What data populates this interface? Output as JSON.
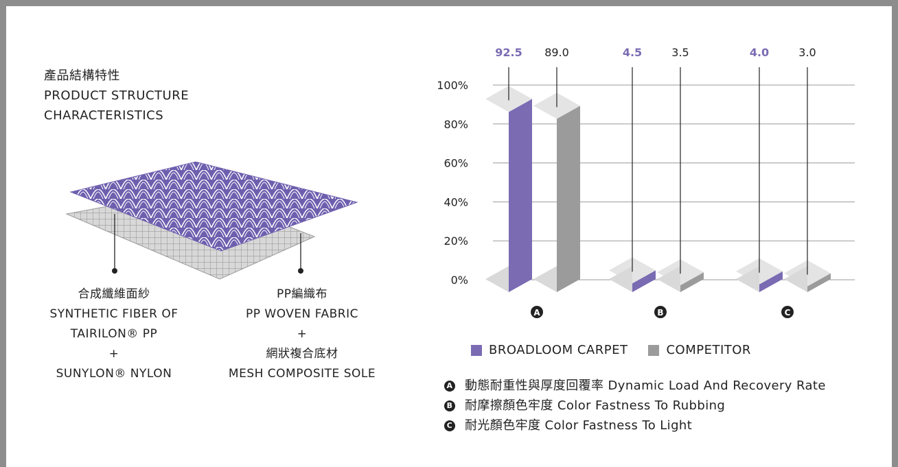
{
  "heading": {
    "zh": "產品結構特性",
    "en_line1": "PRODUCT STRUCTURE",
    "en_line2": "CHARACTERISTICS"
  },
  "layers": {
    "top": {
      "zh": "合成纖維面紗",
      "en_line1": "SYNTHETIC FIBER OF",
      "en_line2": "TAIRILON® PP",
      "plus": "+",
      "en_line3": "SUNYLON® NYLON"
    },
    "bottom": {
      "zh": "PP編織布",
      "en_line1": "PP WOVEN FABRIC",
      "plus": "+",
      "zh2": "網狀複合底材",
      "en_line2": "MESH COMPOSITE SOLE"
    }
  },
  "colors": {
    "primary": "#7a6bb3",
    "competitor": "#9b9b9b",
    "frame": "#8d8d8d"
  },
  "chart_data": {
    "type": "bar",
    "categories": [
      "A",
      "B",
      "C"
    ],
    "category_badges": [
      "A",
      "B",
      "C"
    ],
    "series": [
      {
        "name": "BROADLOOM CARPET",
        "values": [
          92.5,
          4.5,
          4.0
        ],
        "labels": [
          "92.5",
          "4.5",
          "4.0"
        ]
      },
      {
        "name": "COMPETITOR",
        "values": [
          89.0,
          3.5,
          3.0
        ],
        "labels": [
          "89.0",
          "3.5",
          "3.0"
        ]
      }
    ],
    "y_ticks": [
      "0%",
      "20%",
      "40%",
      "60%",
      "80%",
      "100%"
    ],
    "ylim": [
      0,
      100
    ],
    "grid": true,
    "legend_position": "bottom"
  },
  "notes": [
    {
      "badge": "A",
      "text": "動態耐重性與厚度回覆率 Dynamic Load And Recovery Rate"
    },
    {
      "badge": "B",
      "text": "耐摩擦顏色牢度 Color Fastness To Rubbing"
    },
    {
      "badge": "C",
      "text": "耐光顏色牢度 Color Fastness To Light"
    }
  ]
}
